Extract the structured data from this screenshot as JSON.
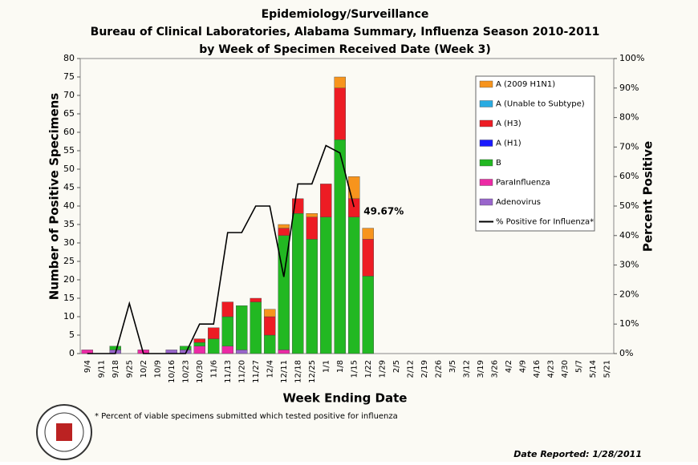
{
  "chart_data": {
    "type": "stacked-bar-line",
    "title": "Epidemiology/Surveillance",
    "subtitle": "Bureau of Clinical Laboratories, Alabama Summary, Influenza Season 2010-2011",
    "subtitle2": "by Week of Specimen Received Date (Week 3)",
    "x_label": "Week Ending Date",
    "y_label": "Number of Positive Specimens",
    "y2_label": "Percent Positive",
    "footnote": "* Percent of viable specimens submitted which tested positive for influenza",
    "date_reported": "Date Reported: 1/28/2011",
    "categories": [
      "9/4",
      "9/11",
      "9/18",
      "9/25",
      "10/2",
      "10/9",
      "10/16",
      "10/23",
      "10/30",
      "11/6",
      "11/13",
      "11/20",
      "11/27",
      "12/4",
      "12/11",
      "12/18",
      "12/25",
      "1/1",
      "1/8",
      "1/15",
      "1/22",
      "1/29",
      "2/5",
      "2/12",
      "2/19",
      "2/26",
      "3/5",
      "3/12",
      "3/19",
      "3/26",
      "4/2",
      "4/9",
      "4/16",
      "4/23",
      "4/30",
      "5/7",
      "5/14",
      "5/21"
    ],
    "series": [
      {
        "name": "A (2009 H1N1)",
        "color": "#f7941d",
        "values": [
          0,
          0,
          0,
          0,
          0,
          0,
          0,
          0,
          0,
          0,
          0,
          0,
          0,
          2,
          1,
          0,
          1,
          0,
          3,
          6,
          3,
          0,
          0,
          0,
          0,
          0,
          0,
          0,
          0,
          0,
          0,
          0,
          0,
          0,
          0,
          0,
          0,
          0
        ]
      },
      {
        "name": "A (Unable to Subtype)",
        "color": "#29abe2",
        "values": [
          0,
          0,
          0,
          0,
          0,
          0,
          0,
          0,
          0,
          0,
          0,
          0,
          0,
          0,
          0,
          0,
          0,
          0,
          0,
          0,
          0,
          0,
          0,
          0,
          0,
          0,
          0,
          0,
          0,
          0,
          0,
          0,
          0,
          0,
          0,
          0,
          0,
          0
        ]
      },
      {
        "name": "A (H3)",
        "color": "#ed1c24",
        "values": [
          0,
          0,
          0,
          0,
          0,
          0,
          0,
          0,
          1,
          3,
          4,
          0,
          1,
          5,
          2,
          4,
          6,
          9,
          14,
          5,
          10,
          0,
          0,
          0,
          0,
          0,
          0,
          0,
          0,
          0,
          0,
          0,
          0,
          0,
          0,
          0,
          0,
          0
        ]
      },
      {
        "name": "A (H1)",
        "color": "#1a1aff",
        "values": [
          0,
          0,
          0,
          0,
          0,
          0,
          0,
          0,
          0,
          0,
          0,
          0,
          0,
          0,
          0,
          0,
          0,
          0,
          0,
          0,
          0,
          0,
          0,
          0,
          0,
          0,
          0,
          0,
          0,
          0,
          0,
          0,
          0,
          0,
          0,
          0,
          0,
          0
        ]
      },
      {
        "name": "B",
        "color": "#22b822",
        "values": [
          0,
          0,
          1,
          0,
          0,
          0,
          0,
          1,
          1,
          4,
          8,
          12,
          14,
          5,
          31,
          38,
          31,
          37,
          58,
          37,
          21,
          0,
          0,
          0,
          0,
          0,
          0,
          0,
          0,
          0,
          0,
          0,
          0,
          0,
          0,
          0,
          0,
          0
        ]
      },
      {
        "name": "ParaInfluenza",
        "color": "#ec2aa5",
        "values": [
          1,
          0,
          0,
          0,
          1,
          0,
          0,
          0,
          2,
          0,
          2,
          0,
          0,
          0,
          1,
          0,
          0,
          0,
          0,
          0,
          0,
          0,
          0,
          0,
          0,
          0,
          0,
          0,
          0,
          0,
          0,
          0,
          0,
          0,
          0,
          0,
          0,
          0
        ]
      },
      {
        "name": "Adenovirus",
        "color": "#9966cc",
        "values": [
          0,
          0,
          1,
          0,
          0,
          0,
          1,
          1,
          0,
          0,
          0,
          1,
          0,
          0,
          0,
          0,
          0,
          0,
          0,
          0,
          0,
          0,
          0,
          0,
          0,
          0,
          0,
          0,
          0,
          0,
          0,
          0,
          0,
          0,
          0,
          0,
          0,
          0
        ]
      },
      {
        "name": "% Positive for Influenza*",
        "color": "#000000",
        "axis": "y2",
        "line": true,
        "values": [
          0,
          0,
          0,
          17,
          0,
          0,
          0,
          0,
          10,
          10,
          41,
          41,
          50,
          50,
          26,
          57.5,
          57.5,
          70.5,
          68,
          49.67,
          null,
          null,
          null,
          null,
          null,
          null,
          null,
          null,
          null,
          null,
          null,
          null,
          null,
          null,
          null,
          null,
          null,
          null
        ],
        "value_labels": [
          null,
          null,
          null,
          null,
          null,
          null,
          null,
          null,
          null,
          null,
          null,
          null,
          null,
          null,
          null,
          null,
          null,
          null,
          null,
          "49.67%",
          null,
          null,
          null,
          null,
          null,
          null,
          null,
          null,
          null,
          null,
          null,
          null,
          null,
          null,
          null,
          null,
          null,
          null
        ]
      }
    ],
    "ylim": [
      0,
      80
    ],
    "yticks": [
      0,
      5,
      10,
      15,
      20,
      25,
      30,
      35,
      40,
      45,
      50,
      55,
      60,
      65,
      70,
      75,
      80
    ],
    "y2lim": [
      0,
      100
    ],
    "y2ticks": [
      {
        "value": 0,
        "label": "0%"
      },
      {
        "value": 10,
        "label": "10%"
      },
      {
        "value": 20,
        "label": "20%"
      },
      {
        "value": 30,
        "label": "30%"
      },
      {
        "value": 40,
        "label": "40%"
      },
      {
        "value": 50,
        "label": "50%"
      },
      {
        "value": 60,
        "label": "60%"
      },
      {
        "value": 70,
        "label": "70%"
      },
      {
        "value": 80,
        "label": "80%"
      },
      {
        "value": 90,
        "label": "90%"
      },
      {
        "value": 100,
        "label": "100%"
      }
    ]
  }
}
